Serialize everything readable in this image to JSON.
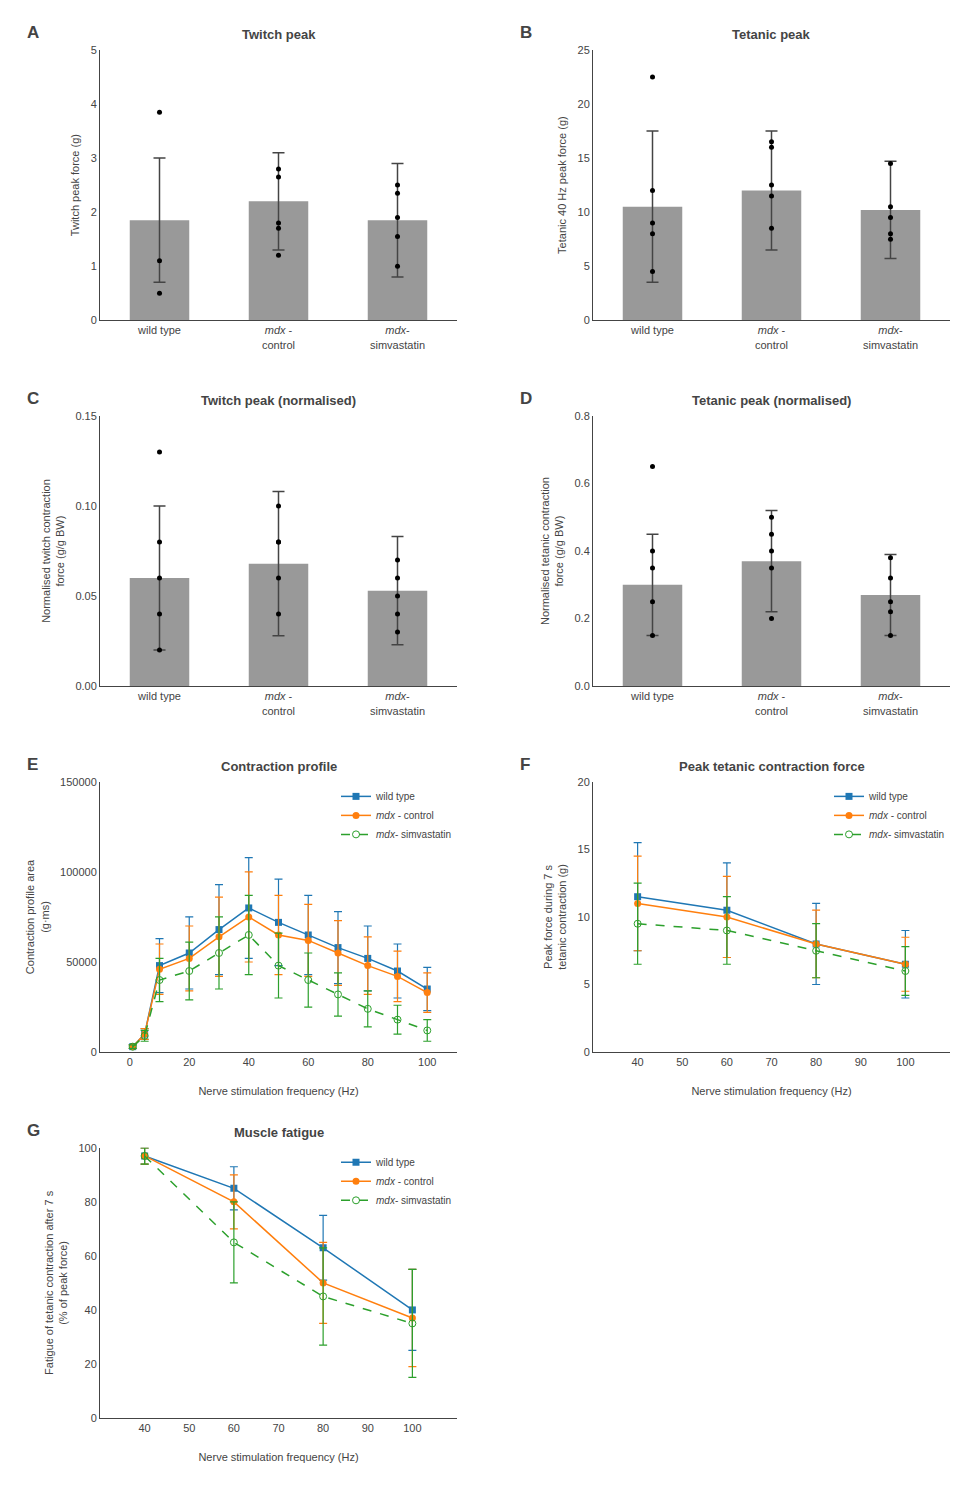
{
  "chart_data": [
    {
      "type": "bar",
      "title": "Twitch peak",
      "annotations": [
        "A"
      ],
      "ylabel": "Twitch peak force (g)",
      "ylim": [
        0,
        5
      ],
      "yticks": [
        0,
        1,
        2,
        3,
        4,
        5
      ],
      "grid": false,
      "categories": [
        "wild type",
        "mdx -\ncontrol",
        "mdx-\nsimvastatin"
      ],
      "series": [
        {
          "type": "bar",
          "color": "#999999",
          "values": [
            1.85,
            2.2,
            1.85
          ],
          "errors": [
            1.15,
            0.9,
            1.05
          ]
        },
        {
          "type": "scatter",
          "color": "#000000",
          "marker": "circle",
          "values": [
            [
              0.5,
              1.1,
              3.85
            ],
            [
              1.7,
              2.8,
              1.8,
              2.65,
              1.2
            ],
            [
              1.9,
              2.5,
              1.55,
              1.0,
              2.35
            ]
          ]
        }
      ]
    },
    {
      "type": "bar",
      "title": "Tetanic peak",
      "annotations": [
        "B"
      ],
      "ylabel": "Tetanic 40 Hz peak force (g)",
      "ylim": [
        0,
        25
      ],
      "yticks": [
        0,
        5,
        10,
        15,
        20,
        25
      ],
      "grid": false,
      "categories": [
        "wild type",
        "mdx -\ncontrol",
        "mdx-\nsimvastatin"
      ],
      "series": [
        {
          "type": "bar",
          "color": "#999999",
          "values": [
            10.5,
            12.0,
            10.2
          ],
          "errors": [
            7.0,
            5.5,
            4.5
          ]
        },
        {
          "type": "scatter",
          "color": "#000000",
          "marker": "circle",
          "values": [
            [
              4.5,
              8.0,
              22.5,
              9.0,
              12.0
            ],
            [
              8.5,
              12.5,
              16.5,
              11.5,
              16.0
            ],
            [
              7.5,
              9.5,
              10.5,
              14.5,
              8.0
            ]
          ]
        }
      ]
    },
    {
      "type": "bar",
      "title": "Twitch peak (normalised)",
      "annotations": [
        "C"
      ],
      "ylabel": "Normalised twitch contraction\nforce (g/g BW)",
      "ylim": [
        0,
        0.15
      ],
      "yticks": [
        {
          "value": 0,
          "label": "0.00"
        },
        0.05,
        {
          "value": 0.1,
          "label": "0.10"
        },
        0.15
      ],
      "grid": false,
      "categories": [
        "wild type",
        "mdx -\ncontrol",
        "mdx-\nsimvastatin"
      ],
      "series": [
        {
          "type": "bar",
          "color": "#999999",
          "values": [
            0.06,
            0.068,
            0.053
          ],
          "errors": [
            0.04,
            0.04,
            0.03
          ]
        },
        {
          "type": "scatter",
          "color": "#000000",
          "marker": "circle",
          "values": [
            [
              0.02,
              0.04,
              0.08,
              0.06,
              0.13
            ],
            [
              0.04,
              0.08,
              0.1,
              0.06,
              0.08
            ],
            [
              0.03,
              0.05,
              0.06,
              0.07,
              0.04
            ]
          ]
        }
      ]
    },
    {
      "type": "bar",
      "title": "Tetanic peak (normalised)",
      "annotations": [
        "D"
      ],
      "ylabel": "Normalised tetanic contraction\nforce (g/g BW)",
      "ylim": [
        0,
        0.8
      ],
      "yticks": [
        {
          "value": 0,
          "label": "0.0"
        },
        0.2,
        0.4,
        0.6,
        0.8
      ],
      "grid": false,
      "categories": [
        "wild type",
        "mdx -\ncontrol",
        "mdx-\nsimvastatin"
      ],
      "series": [
        {
          "type": "bar",
          "color": "#999999",
          "values": [
            0.3,
            0.37,
            0.27
          ],
          "errors": [
            0.15,
            0.15,
            0.12
          ]
        },
        {
          "type": "scatter",
          "color": "#000000",
          "marker": "circle",
          "values": [
            [
              0.15,
              0.25,
              0.4,
              0.35,
              0.65
            ],
            [
              0.2,
              0.35,
              0.5,
              0.4,
              0.45
            ],
            [
              0.15,
              0.25,
              0.32,
              0.38,
              0.22
            ]
          ]
        }
      ]
    },
    {
      "type": "line",
      "title": "Contraction profile",
      "annotations": [
        "E"
      ],
      "xlabel": "Nerve stimulation frequency (Hz)",
      "ylabel": "Contraction profile area\n(g·ms)",
      "xlim": [
        -10,
        110
      ],
      "xticks": [
        0,
        20,
        40,
        60,
        80,
        100
      ],
      "ylim": [
        0,
        150000
      ],
      "yticks": [
        0,
        50000,
        100000,
        150000
      ],
      "grid": false,
      "legend": "upper right",
      "x": [
        1,
        5,
        10,
        20,
        30,
        40,
        50,
        60,
        70,
        80,
        90,
        100
      ],
      "series": [
        {
          "name": "wild type",
          "color": "#1f77b4",
          "marker": "square",
          "line_style": "solid",
          "values": [
            3000,
            10000,
            48000,
            55000,
            68000,
            80000,
            72000,
            65000,
            58000,
            52000,
            45000,
            35000
          ],
          "errors": [
            1000,
            3000,
            15000,
            20000,
            25000,
            28000,
            24000,
            22000,
            20000,
            18000,
            15000,
            12000
          ]
        },
        {
          "name": "mdx - control",
          "color": "#ff7f0e",
          "marker": "circle",
          "line_style": "solid",
          "values": [
            3000,
            10000,
            46000,
            52000,
            64000,
            75000,
            65000,
            62000,
            55000,
            48000,
            42000,
            33000
          ],
          "errors": [
            1000,
            3000,
            14000,
            18000,
            22000,
            25000,
            22000,
            20000,
            18000,
            16000,
            14000,
            11000
          ]
        },
        {
          "name": "mdx- simvastatin",
          "color": "#2ca02c",
          "marker": "open circle",
          "line_style": "dashed",
          "values": [
            3000,
            9000,
            40000,
            45000,
            55000,
            65000,
            48000,
            40000,
            32000,
            24000,
            18000,
            12000
          ],
          "errors": [
            1000,
            3000,
            12000,
            16000,
            20000,
            22000,
            18000,
            15000,
            12000,
            10000,
            8000,
            6000
          ]
        }
      ]
    },
    {
      "type": "line",
      "title": "Peak tetanic contraction force",
      "annotations": [
        "F"
      ],
      "xlabel": "Nerve stimulation frequency (Hz)",
      "ylabel": "Peak force during 7 s\ntetanic contraction (g)",
      "xlim": [
        30,
        110
      ],
      "xticks": [
        40,
        50,
        60,
        70,
        80,
        90,
        100
      ],
      "ylim": [
        0,
        20
      ],
      "yticks": [
        0,
        5,
        10,
        15,
        20
      ],
      "grid": false,
      "legend": "upper right",
      "x": [
        40,
        60,
        80,
        100
      ],
      "series": [
        {
          "name": "wild type",
          "color": "#1f77b4",
          "marker": "square",
          "line_style": "solid",
          "values": [
            11.5,
            10.5,
            8.0,
            6.5
          ],
          "errors": [
            4.0,
            3.5,
            3.0,
            2.5
          ]
        },
        {
          "name": "mdx - control",
          "color": "#ff7f0e",
          "marker": "circle",
          "line_style": "solid",
          "values": [
            11.0,
            10.0,
            8.0,
            6.5
          ],
          "errors": [
            3.5,
            3.0,
            2.5,
            2.0
          ]
        },
        {
          "name": "mdx- simvastatin",
          "color": "#2ca02c",
          "marker": "open circle",
          "line_style": "dashed",
          "values": [
            9.5,
            9.0,
            7.5,
            6.0
          ],
          "errors": [
            3.0,
            2.5,
            2.0,
            1.8
          ]
        }
      ]
    },
    {
      "type": "line",
      "title": "Muscle fatigue",
      "annotations": [
        "G"
      ],
      "xlabel": "Nerve stimulation frequency (Hz)",
      "ylabel": "Fatigue of tetanic contraction after 7 s\n(% of peak force)",
      "xlim": [
        30,
        110
      ],
      "xticks": [
        40,
        50,
        60,
        70,
        80,
        90,
        100
      ],
      "ylim": [
        0,
        100
      ],
      "yticks": [
        0,
        20,
        40,
        60,
        80,
        100
      ],
      "grid": false,
      "legend": "upper right",
      "x": [
        40,
        60,
        80,
        100
      ],
      "series": [
        {
          "name": "wild type",
          "color": "#1f77b4",
          "marker": "square",
          "line_style": "solid",
          "values": [
            97,
            85,
            63,
            40
          ],
          "errors": [
            3,
            8,
            12,
            15
          ]
        },
        {
          "name": "mdx - control",
          "color": "#ff7f0e",
          "marker": "circle",
          "line_style": "solid",
          "values": [
            97,
            80,
            50,
            37
          ],
          "errors": [
            3,
            10,
            15,
            18
          ]
        },
        {
          "name": "mdx- simvastatin",
          "color": "#2ca02c",
          "marker": "open circle",
          "line_style": "dashed",
          "values": [
            97,
            65,
            45,
            35
          ],
          "errors": [
            3,
            15,
            18,
            20
          ]
        }
      ]
    }
  ]
}
